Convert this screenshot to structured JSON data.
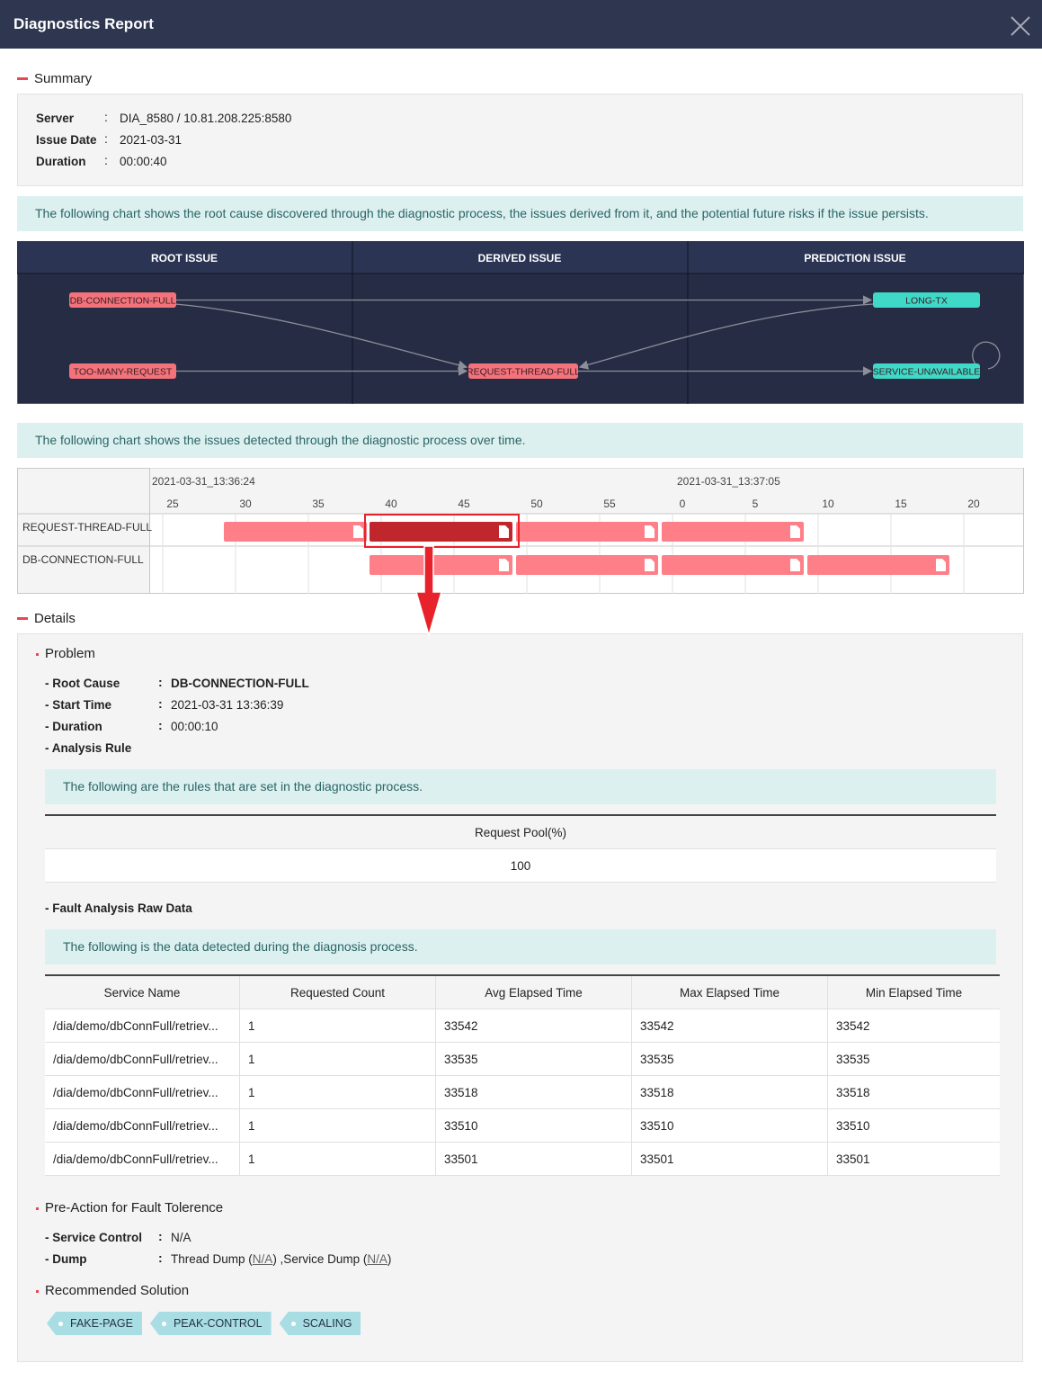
{
  "header": {
    "title": "Diagnostics Report"
  },
  "summary": {
    "title": "Summary",
    "separator": ":",
    "rows": [
      {
        "label": "Server",
        "value": "DIA_8580 / 10.81.208.225:8580"
      },
      {
        "label": "Issue Date",
        "value": "2021-03-31"
      },
      {
        "label": "Duration",
        "value": "00:00:40"
      }
    ]
  },
  "flow": {
    "note": "The following chart shows the root cause discovered through the diagnostic process, the issues derived from it, and the potential future risks if the issue persists.",
    "columns": [
      "ROOT ISSUE",
      "DERIVED ISSUE",
      "PREDICTION ISSUE"
    ],
    "nodes": [
      "DB-CONNECTION-FULL",
      "TOO-MANY-REQUEST",
      "REQUEST-THREAD-FULL",
      "LONG-TX",
      "SERVICE-UNAVAILABLE"
    ]
  },
  "timeline": {
    "note": "The following chart shows the issues detected through the diagnostic process over time.",
    "time_labels": [
      "2021-03-31_13:36:24",
      "2021-03-31_13:37:05"
    ],
    "ticks": [
      25,
      30,
      35,
      40,
      45,
      50,
      55,
      0,
      5,
      10,
      15,
      20
    ],
    "rows": [
      "REQUEST-THREAD-FULL",
      "DB-CONNECTION-FULL"
    ]
  },
  "details": {
    "title": "Details",
    "problem": {
      "title": "Problem",
      "rows": [
        {
          "label": "- Root Cause",
          "value": "DB-CONNECTION-FULL"
        },
        {
          "label": "- Start Time",
          "value": "2021-03-31 13:36:39"
        },
        {
          "label": "- Duration",
          "value": "00:00:10"
        }
      ],
      "analysis_rule": "- Analysis Rule",
      "rule_note": "The following are the rules that are set in the diagnostic process.",
      "rule_table": {
        "columns": [
          "Request Pool(%)"
        ],
        "rows": [
          [
            100
          ]
        ]
      },
      "raw_title": "- Fault Analysis Raw Data",
      "raw_note": "The following is the data detected during the diagnosis process.",
      "raw_table": {
        "columns": [
          "Service Name",
          "Requested Count",
          "Avg Elapsed Time",
          "Max Elapsed Time",
          "Min Elapsed Time"
        ],
        "rows": [
          [
            "/dia/demo/dbConnFull/retriev...",
            1,
            33542,
            33542,
            33542
          ],
          [
            "/dia/demo/dbConnFull/retriev...",
            1,
            33535,
            33535,
            33535
          ],
          [
            "/dia/demo/dbConnFull/retriev...",
            1,
            33518,
            33518,
            33518
          ],
          [
            "/dia/demo/dbConnFull/retriev...",
            1,
            33510,
            33510,
            33510
          ],
          [
            "/dia/demo/dbConnFull/retriev...",
            1,
            33501,
            33501,
            33501
          ]
        ]
      }
    },
    "pre_action": {
      "title": "Pre-Action for Fault Tolerence",
      "rows": [
        {
          "label": "- Service Control",
          "parts": [
            "N/A"
          ]
        },
        {
          "label": "- Dump",
          "parts": [
            "Thread Dump (",
            "N/A",
            ") ,Service Dump (",
            "N/A",
            ")"
          ]
        }
      ]
    },
    "solution": {
      "title": "Recommended Solution",
      "tags": [
        "FAKE-PAGE",
        "PEAK-CONTROL",
        "SCALING"
      ]
    }
  }
}
